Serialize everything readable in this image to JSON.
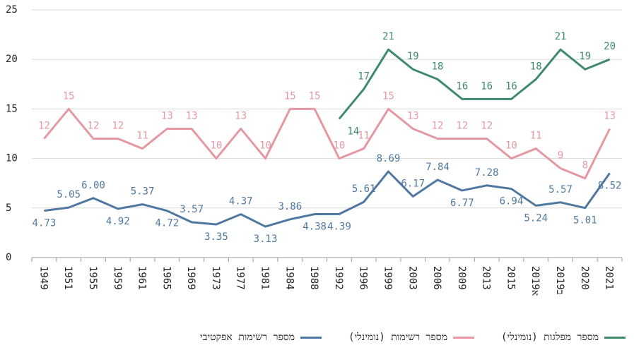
{
  "chart_data": {
    "type": "line",
    "categories": [
      "1949",
      "1951",
      "1955",
      "1959",
      "1961",
      "1965",
      "1969",
      "1973",
      "1977",
      "1981",
      "1984",
      "1988",
      "1992",
      "1996",
      "1999",
      "2003",
      "2006",
      "2009",
      "2013",
      "2015",
      "2019א",
      "2019ב",
      "2020",
      "2021"
    ],
    "series": [
      {
        "name": "מספר מפלגות (נומינלי)",
        "color": "#3f8a6c",
        "values": [
          null,
          null,
          null,
          null,
          null,
          null,
          null,
          null,
          null,
          null,
          null,
          null,
          14,
          17,
          21,
          19,
          18,
          16,
          16,
          16,
          18,
          21,
          19,
          20
        ]
      },
      {
        "name": "מספר רשימות (נומינלי)",
        "color": "#e598a2",
        "values": [
          12,
          15,
          12,
          12,
          11,
          13,
          13,
          10,
          13,
          10,
          15,
          15,
          10,
          11,
          15,
          13,
          12,
          12,
          12,
          10,
          11,
          9,
          8,
          13
        ]
      },
      {
        "name": "מספר רשימות אפקטיבי",
        "color": "#4f78a0",
        "values": [
          4.73,
          5.05,
          6.0,
          4.92,
          5.37,
          4.72,
          3.57,
          3.35,
          4.37,
          3.13,
          3.86,
          4.38,
          4.39,
          5.61,
          8.69,
          6.17,
          7.84,
          6.77,
          7.28,
          6.94,
          5.24,
          5.57,
          5.01,
          8.52
        ],
        "value_labels": [
          "4.73",
          "5.05",
          "6.00",
          "4.92",
          "5.37",
          "4.72",
          "3.57",
          "3.35",
          "4.37",
          "3.13",
          "3.86",
          "4.38",
          "4.39",
          "5.61",
          "8.69",
          "6.17",
          "7.84",
          "6.77",
          "7.28",
          "6.94",
          "5.24",
          "5.57",
          "5.01",
          "8.52"
        ]
      }
    ],
    "ylim": [
      0,
      25
    ],
    "yticks": [
      0,
      5,
      10,
      15,
      20,
      25
    ],
    "grid": true,
    "legend": "bottom"
  }
}
